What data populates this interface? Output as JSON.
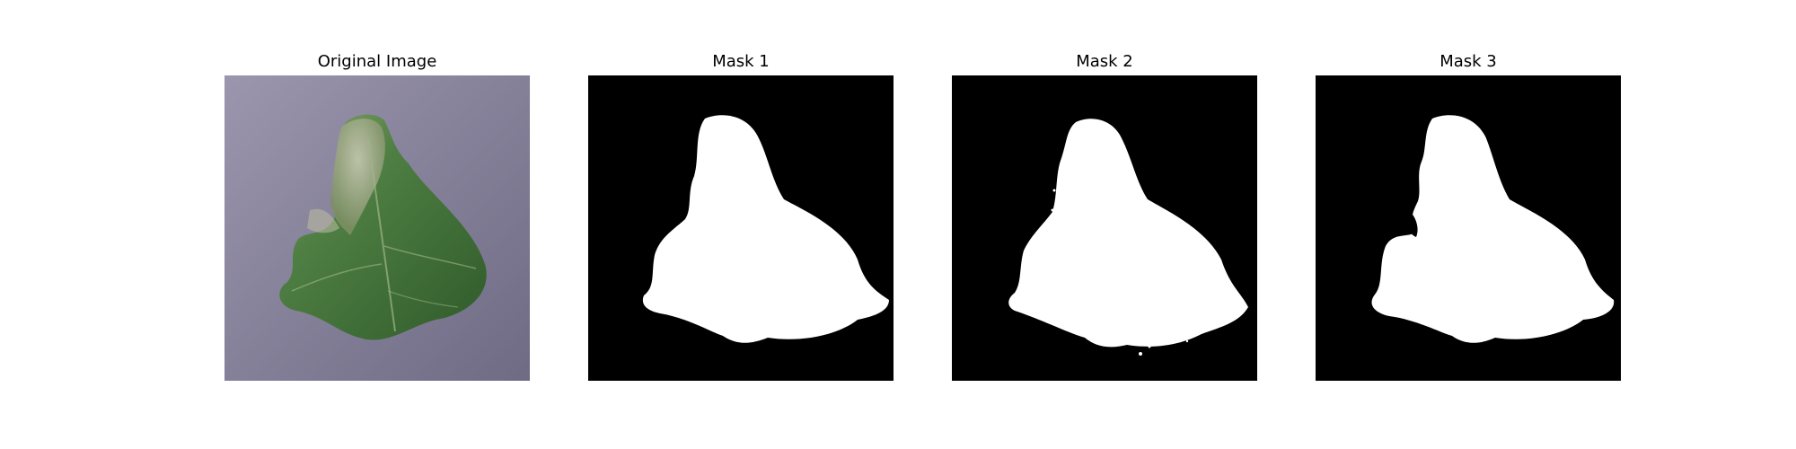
{
  "figure": {
    "panels": [
      {
        "title": "Original Image",
        "kind": "photo",
        "subject": "leaf-photo"
      },
      {
        "title": "Mask 1",
        "kind": "mask",
        "subject": "segmentation-mask"
      },
      {
        "title": "Mask 2",
        "kind": "mask",
        "subject": "segmentation-mask"
      },
      {
        "title": "Mask 3",
        "kind": "mask",
        "subject": "segmentation-mask"
      }
    ]
  },
  "colors": {
    "background": "#7b7690",
    "background_light": "#9b96ae",
    "leaf_dark": "#2f5a2a",
    "leaf_mid": "#4f7f43",
    "leaf_light": "#8da76d",
    "leaf_gray": "#a8ab92",
    "mask_fg": "#ffffff",
    "mask_bg": "#000000"
  }
}
